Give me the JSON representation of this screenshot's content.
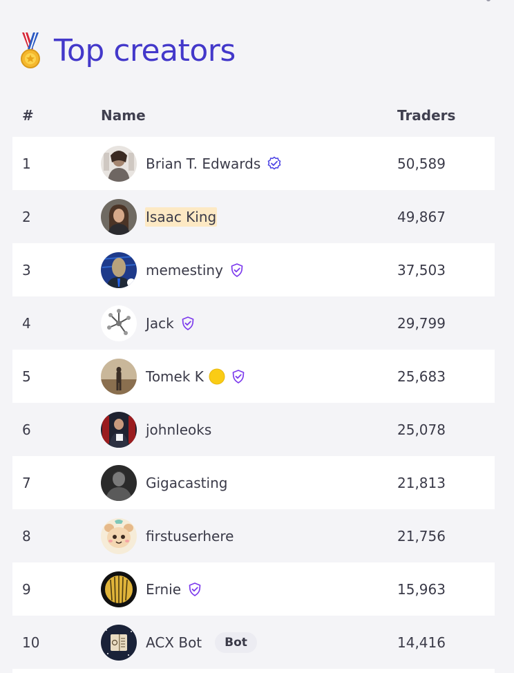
{
  "header": {
    "title": "Top creators",
    "medal_icon": "medal-icon"
  },
  "table": {
    "columns": {
      "rank": "#",
      "name": "Name",
      "traders": "Traders"
    },
    "rows": [
      {
        "rank": "1",
        "name": "Brian T. Edwards",
        "traders": "50,589",
        "badge": "verified-badge-blue"
      },
      {
        "rank": "2",
        "name": "Isaac King",
        "traders": "49,867",
        "badge": null,
        "highlighted": true
      },
      {
        "rank": "3",
        "name": "memestiny",
        "traders": "37,503",
        "badge": "shield-badge-purple"
      },
      {
        "rank": "4",
        "name": "Jack",
        "traders": "29,799",
        "badge": "shield-badge-purple"
      },
      {
        "rank": "5",
        "name": "Tomek K",
        "traders": "25,683",
        "badge": "shield-badge-purple",
        "extra_icon": "yellow-coin-icon"
      },
      {
        "rank": "6",
        "name": "johnleoks",
        "traders": "25,078",
        "badge": null
      },
      {
        "rank": "7",
        "name": "Gigacasting",
        "traders": "21,813",
        "badge": null
      },
      {
        "rank": "8",
        "name": "firstuserhere",
        "traders": "21,756",
        "badge": null
      },
      {
        "rank": "9",
        "name": "Ernie",
        "traders": "15,963",
        "badge": "shield-badge-purple"
      },
      {
        "rank": "10",
        "name": "ACX Bot",
        "traders": "14,416",
        "badge": null,
        "tag": "Bot"
      }
    ]
  },
  "colors": {
    "title": "#4338ca",
    "highlight": "#fde9c4",
    "blue_badge": "#4f46e5",
    "purple_badge": "#7c3aed",
    "coin": "#facc15"
  }
}
